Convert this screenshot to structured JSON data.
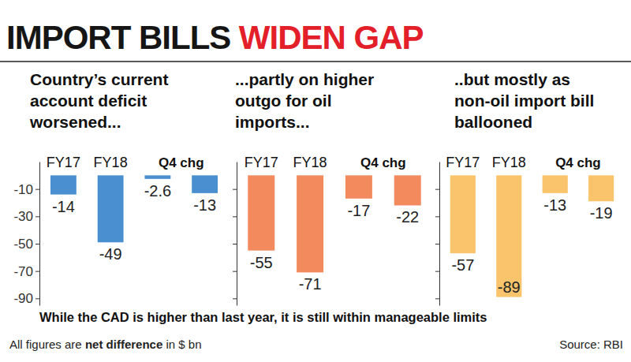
{
  "headline": [
    "IMPORT BILLS",
    "WIDEN GAP"
  ],
  "chart_data": [
    {
      "type": "bar",
      "title": [
        "Country’s current",
        "account deficit",
        "worsened..."
      ],
      "categories": [
        "FY17",
        "FY18",
        null,
        null
      ],
      "annotation": "Q4 chg",
      "values": [
        -14,
        -49,
        -2.6,
        -13
      ],
      "color": "#4a90d0",
      "ylim": [
        -95,
        10
      ],
      "yticks": [
        -10,
        -30,
        -50,
        -70,
        -90
      ],
      "data_labels": true
    },
    {
      "type": "bar",
      "title": [
        "...partly on higher",
        "outgo for oil",
        "imports..."
      ],
      "categories": [
        "FY17",
        "FY18",
        null,
        null
      ],
      "annotation": "Q4 chg",
      "values": [
        -55,
        -71,
        -17,
        -22
      ],
      "color": "#f28a5e",
      "ylim": [
        -95,
        10
      ],
      "yticks": [
        -10,
        -30,
        -50,
        -70,
        -90
      ],
      "data_labels": true,
      "tick_labels": "x"
    },
    {
      "type": "bar",
      "title": [
        "..but mostly as",
        "non-oil import bill",
        "ballooned"
      ],
      "categories": [
        "FY17",
        "FY18",
        null,
        null
      ],
      "annotation": "Q4 chg",
      "values": [
        -57,
        -89,
        -13,
        -19
      ],
      "color": "#f9c46b",
      "ylim": [
        -95,
        10
      ],
      "yticks": [
        -10,
        -30,
        -50,
        -70,
        -90
      ],
      "data_labels": true,
      "tick_labels": "x"
    }
  ],
  "footnote": "While the CAD is higher than last year, it is still within manageable limits",
  "note": [
    "All figures are",
    "net difference",
    "in $ bn"
  ],
  "source": "Source: RBI"
}
